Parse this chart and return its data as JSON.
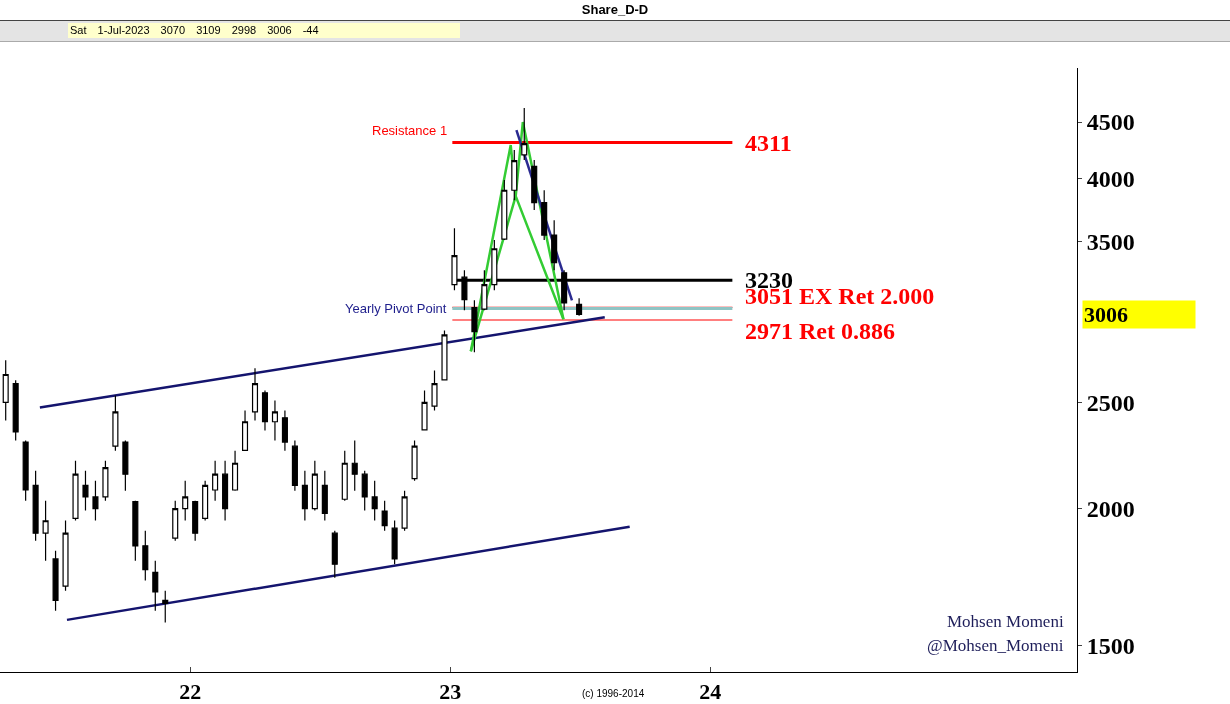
{
  "chart_data": {
    "type": "candlestick",
    "title": "Share_D-D",
    "subtitle": "Sat 1-Jul-2023 3070 3109 2998 3006 -44",
    "x": [
      "2021-04-17",
      "2021-05-01",
      "2021-05-15",
      "2021-05-29",
      "2021-06-12",
      "2021-06-26",
      "2021-07-10",
      "2021-07-24",
      "2021-08-07",
      "2021-08-21",
      "2021-09-04",
      "2021-09-18",
      "2021-10-02",
      "2021-10-16",
      "2021-10-30",
      "2021-11-13",
      "2021-11-27",
      "2021-12-11",
      "2021-12-25",
      "2022-01-08",
      "2022-01-22",
      "2022-02-05",
      "2022-02-19",
      "2022-03-05",
      "2022-03-19",
      "2022-04-02",
      "2022-04-16",
      "2022-04-30",
      "2022-05-14",
      "2022-05-28",
      "2022-06-11",
      "2022-06-25",
      "2022-07-09",
      "2022-07-23",
      "2022-08-06",
      "2022-08-20",
      "2022-09-03",
      "2022-09-17",
      "2022-10-01",
      "2022-10-15",
      "2022-10-29",
      "2022-11-12",
      "2022-11-26",
      "2022-12-10",
      "2022-12-24",
      "2023-01-07",
      "2023-01-21",
      "2023-02-04",
      "2023-02-18",
      "2023-03-04",
      "2023-03-18",
      "2023-04-01",
      "2023-04-15",
      "2023-04-29",
      "2023-05-13",
      "2023-05-27",
      "2023-06-10",
      "2023-07-01"
    ],
    "ohlc": [
      [
        2500,
        2730,
        2406,
        2650
      ],
      [
        2600,
        2618,
        2307,
        2350
      ],
      [
        2300,
        2307,
        2034,
        2080
      ],
      [
        2100,
        2166,
        1870,
        1900
      ],
      [
        1900,
        2034,
        1793,
        1950
      ],
      [
        1800,
        1831,
        1615,
        1650
      ],
      [
        1700,
        1951,
        1684,
        1900
      ],
      [
        1960,
        2212,
        1951,
        2150
      ],
      [
        2100,
        2166,
        1992,
        2050
      ],
      [
        2050,
        2121,
        1951,
        2000
      ],
      [
        2050,
        2212,
        2034,
        2180
      ],
      [
        2280,
        2536,
        2259,
        2450
      ],
      [
        2300,
        2307,
        2077,
        2150
      ],
      [
        2030,
        2034,
        1793,
        1850
      ],
      [
        1850,
        1910,
        1720,
        1760
      ],
      [
        1750,
        1793,
        1615,
        1680
      ],
      [
        1650,
        1684,
        1575,
        1640
      ],
      [
        1880,
        2034,
        1870,
        2000
      ],
      [
        2000,
        2121,
        1951,
        2050
      ],
      [
        2030,
        2034,
        1870,
        1900
      ],
      [
        1960,
        2121,
        1951,
        2100
      ],
      [
        2080,
        2212,
        2034,
        2150
      ],
      [
        2150,
        2212,
        1951,
        2000
      ],
      [
        2080,
        2259,
        2077,
        2200
      ],
      [
        2260,
        2458,
        2259,
        2400
      ],
      [
        2450,
        2685,
        2406,
        2600
      ],
      [
        2550,
        2563,
        2356,
        2400
      ],
      [
        2400,
        2510,
        2307,
        2450
      ],
      [
        2420,
        2458,
        2259,
        2300
      ],
      [
        2280,
        2307,
        2077,
        2100
      ],
      [
        2100,
        2166,
        1951,
        2000
      ],
      [
        2000,
        2212,
        1992,
        2150
      ],
      [
        2100,
        2166,
        1951,
        1980
      ],
      [
        1900,
        1910,
        1730,
        1780
      ],
      [
        2040,
        2259,
        2034,
        2200
      ],
      [
        2200,
        2307,
        2077,
        2150
      ],
      [
        2150,
        2166,
        1992,
        2050
      ],
      [
        2050,
        2121,
        1951,
        2000
      ],
      [
        1990,
        2034,
        1910,
        1930
      ],
      [
        1920,
        1951,
        1780,
        1800
      ],
      [
        1920,
        2077,
        1910,
        2050
      ],
      [
        2130,
        2307,
        2121,
        2280
      ],
      [
        2360,
        2563,
        2356,
        2500
      ],
      [
        2480,
        2673,
        2458,
        2600
      ],
      [
        2620,
        2907,
        2618,
        2880
      ],
      [
        3200,
        3602,
        3162,
        3400
      ],
      [
        3250,
        3298,
        3032,
        3100
      ],
      [
        3050,
        3096,
        2777,
        2900
      ],
      [
        3040,
        3298,
        3032,
        3200
      ],
      [
        3200,
        3513,
        3162,
        3450
      ],
      [
        3520,
        3985,
        3513,
        3900
      ],
      [
        3900,
        4244,
        3820,
        4150
      ],
      [
        4200,
        4635,
        4155,
        4300
      ],
      [
        4100,
        4155,
        3741,
        3800
      ],
      [
        3800,
        3901,
        3513,
        3550
      ],
      [
        3550,
        3663,
        3298,
        3350
      ],
      [
        3280,
        3298,
        3032,
        3080
      ],
      [
        3070,
        3109,
        2998,
        3006
      ]
    ],
    "color": "#000000",
    "series": [
      {
        "type": "line",
        "color": "#14146e",
        "x": [
          "2021-06-04",
          "2023-08-06"
        ],
        "values": [
          2473,
          2988
        ]
      },
      {
        "type": "line",
        "color": "#14146e",
        "x": [
          "2021-07-12",
          "2023-09-10"
        ],
        "values": [
          1584,
          1926
        ]
      },
      {
        "type": "line",
        "color": "#33cc33",
        "x": [
          "2023-01-30",
          "2023-03-27",
          "2023-04-03",
          "2023-04-13",
          "2023-06-09"
        ],
        "values": [
          2782,
          4288,
          3852,
          4500,
          2976
        ]
      },
      {
        "type": "line",
        "color": "#33cc33",
        "x": [
          "2023-01-30",
          "2023-04-03",
          "2023-06-09"
        ],
        "values": [
          2782,
          3852,
          2976
        ]
      },
      {
        "type": "line",
        "color": "#2a2a90",
        "x": [
          "2023-04-04",
          "2023-06-21"
        ],
        "values": [
          4425,
          3096
        ]
      }
    ],
    "ref_lines": [
      {
        "axis": "y",
        "value": 4311,
        "label": "4311",
        "color": "#ff0000"
      },
      {
        "axis": "y",
        "value": 3230,
        "label": "3230",
        "color": "#000000"
      },
      {
        "axis": "y",
        "value": 3051,
        "label": "3051 EX Ret 2.000",
        "color": "#ff0000"
      },
      {
        "axis": "y",
        "value": 2971,
        "label": "2971 Ret 0.886",
        "color": "#ff0000"
      },
      {
        "axis": "y",
        "value": 3043,
        "label": null,
        "color": "#8fc4c4"
      }
    ],
    "annotations": [
      {
        "text": "Resistance 1",
        "x": "2022-12-31",
        "y": 4311
      },
      {
        "text": "Yearly Pivot Point",
        "x": "2022-12-31",
        "y": 3043
      },
      "3006",
      "Mohsen Momeni",
      "@Mohsen_Momeni",
      "(c) 1996-2014"
    ],
    "log": "y",
    "grid": false,
    "tick_labels": "xy",
    "xlim": [
      "2021-04-09",
      "2025-05-30"
    ],
    "xticks": [
      {
        "value": "2022-01-01",
        "label": "22"
      },
      {
        "value": "2023-01-01",
        "label": "23"
      },
      {
        "value": "2024-01-01",
        "label": "24"
      }
    ],
    "ylim": [
      1420,
      5040
    ],
    "yticks": [
      1500,
      2000,
      2500,
      3500,
      4000,
      4500
    ]
  }
}
